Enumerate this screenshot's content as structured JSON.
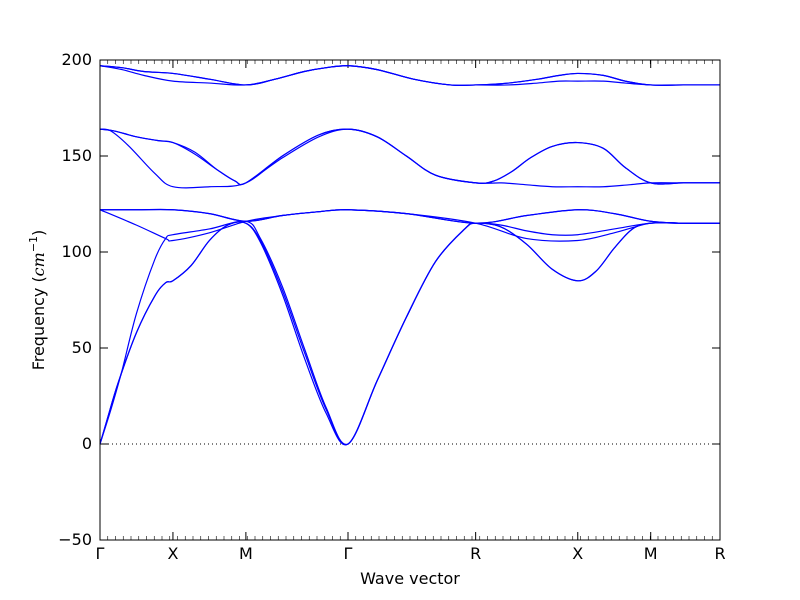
{
  "chart_data": {
    "type": "line",
    "title": "",
    "xlabel": "Wave vector",
    "ylabel_text": "Frequency (",
    "ylabel_unit_base": "cm",
    "ylabel_unit_exp": "−1",
    "ylabel_close": ")",
    "ylim": [
      -50,
      200
    ],
    "yticks": [
      -50,
      0,
      50,
      100,
      150,
      200
    ],
    "ytick_labels": [
      "−50",
      "0",
      "50",
      "100",
      "150",
      "200"
    ],
    "xlim": [
      0,
      8.5
    ],
    "high_symmetry_points": [
      {
        "label": "Γ",
        "x": 0
      },
      {
        "label": "X",
        "x": 1
      },
      {
        "label": "M",
        "x": 2
      },
      {
        "label": "Γ",
        "x": 3.4
      },
      {
        "label": "R",
        "x": 5.15
      },
      {
        "label": "X",
        "x": 6.55
      },
      {
        "label": "M",
        "x": 7.55
      },
      {
        "label": "R",
        "x": 8.5
      }
    ],
    "zero_line": true,
    "line_color": "#0000ff",
    "series": [
      {
        "x": [
          0,
          0.1,
          0.25,
          0.5,
          0.75,
          0.9,
          1,
          1.25,
          1.5,
          1.75,
          2,
          2.2,
          2.5,
          2.8,
          3.1,
          3.4,
          3.8,
          4.2,
          4.6,
          5.0,
          5.15,
          5.5,
          5.85,
          6.2,
          6.55,
          6.8,
          7.05,
          7.3,
          7.55,
          8.0,
          8.5
        ],
        "y": [
          0,
          13,
          32,
          58,
          77,
          84,
          85,
          93,
          106,
          114,
          115,
          105,
          78,
          45,
          16,
          0,
          33,
          66,
          95,
          112,
          115,
          113,
          104,
          91,
          85,
          90,
          102,
          112,
          115,
          115,
          115
        ]
      },
      {
        "x": [
          0,
          0.1,
          0.25,
          0.5,
          0.75,
          0.9,
          1,
          1.25,
          1.5,
          1.75,
          2,
          2.2,
          2.5,
          2.8,
          3.1,
          3.4,
          3.8,
          4.2,
          4.6,
          5.0,
          5.15,
          5.5,
          5.85,
          6.2,
          6.55,
          6.8,
          7.05,
          7.3,
          7.55,
          8.0,
          8.5
        ],
        "y": [
          0,
          13,
          32,
          58,
          77,
          84,
          85,
          93,
          106,
          114,
          115,
          106,
          80,
          48,
          18,
          0,
          33,
          66,
          95,
          112,
          115,
          113,
          104,
          91,
          85,
          90,
          102,
          112,
          115,
          115,
          115
        ]
      },
      {
        "x": [
          0,
          0.15,
          0.3,
          0.5,
          0.75,
          0.9,
          1,
          1.5,
          2,
          2.2,
          2.5,
          2.8,
          3.1,
          3.4,
          3.8,
          4.2,
          4.6,
          5.0,
          5.15,
          5.5,
          5.85,
          6.2,
          6.55,
          7.05,
          7.55,
          8.0,
          8.5
        ],
        "y": [
          0,
          18,
          38,
          68,
          96,
          107,
          109,
          112,
          116,
          107,
          82,
          50,
          19,
          0,
          33,
          66,
          95,
          112,
          115,
          114,
          111,
          109,
          109,
          112,
          115,
          115,
          115
        ]
      },
      {
        "x": [
          0,
          0.5,
          0.9,
          1,
          1.5,
          2,
          2.5,
          3.0,
          3.4,
          4.2,
          5.15,
          5.85,
          6.55,
          7.05,
          7.55,
          8.0,
          8.5
        ],
        "y": [
          122,
          114,
          107,
          106,
          110,
          116,
          119,
          121,
          122,
          120,
          115,
          107,
          106,
          110,
          115,
          115,
          115
        ]
      },
      {
        "x": [
          0,
          0.5,
          1,
          1.5,
          2,
          2.5,
          3.0,
          3.4,
          4.2,
          5.15,
          5.85,
          6.55,
          7.05,
          7.55,
          8.0,
          8.5
        ],
        "y": [
          122,
          122,
          122,
          120,
          116,
          119,
          121,
          122,
          120,
          115,
          119,
          122,
          120,
          116,
          115,
          115
        ]
      },
      {
        "x": [
          0,
          0.5,
          1,
          1.5,
          2,
          2.5,
          3.0,
          3.4,
          4.2,
          5.15,
          5.85,
          6.55,
          7.05,
          7.55,
          8.0,
          8.5
        ],
        "y": [
          122,
          122,
          122,
          120,
          116,
          119,
          121,
          122,
          120,
          115,
          119,
          122,
          120,
          116,
          115,
          115
        ]
      },
      {
        "x": [
          0,
          0.15,
          0.4,
          0.75,
          1,
          1.5,
          2,
          2.5,
          3.0,
          3.4,
          3.8,
          4.2,
          4.6,
          5.15,
          5.5,
          5.85,
          6.2,
          6.55,
          6.9,
          7.25,
          7.55,
          8.0,
          8.5
        ],
        "y": [
          164,
          163,
          155,
          141,
          134,
          134,
          136,
          150,
          161,
          164,
          160,
          150,
          140,
          136,
          136,
          135,
          134,
          134,
          134,
          135,
          136,
          136,
          136
        ]
      },
      {
        "x": [
          0,
          0.2,
          0.5,
          0.8,
          1,
          1.3,
          1.6,
          1.85,
          2,
          2.5,
          3.0,
          3.4,
          3.8,
          4.2,
          4.6,
          5.15,
          5.4,
          5.65,
          5.9,
          6.2,
          6.55,
          6.9,
          7.2,
          7.55,
          8.0,
          8.5
        ],
        "y": [
          164,
          163,
          160,
          158,
          157,
          152,
          143,
          137,
          136,
          150,
          161,
          164,
          160,
          150,
          140,
          136,
          137,
          142,
          149,
          155,
          157,
          154,
          144,
          136,
          136,
          136
        ]
      },
      {
        "x": [
          0,
          0.2,
          0.5,
          0.8,
          1,
          1.3,
          1.6,
          1.85,
          2,
          2.5,
          3.0,
          3.4,
          3.8,
          4.2,
          4.6,
          5.15,
          5.4,
          5.65,
          5.9,
          6.2,
          6.55,
          6.9,
          7.2,
          7.55,
          8.0,
          8.5
        ],
        "y": [
          164,
          163,
          160,
          158,
          157,
          151,
          143,
          137,
          136,
          149,
          160,
          164,
          160,
          150,
          140,
          136,
          137,
          142,
          149,
          155,
          157,
          154,
          144,
          136,
          136,
          136
        ]
      },
      {
        "x": [
          0,
          0.3,
          0.6,
          1,
          1.5,
          2,
          2.4,
          2.8,
          3.1,
          3.4,
          3.8,
          4.3,
          4.8,
          5.15,
          5.6,
          6.0,
          6.3,
          6.55,
          6.9,
          7.2,
          7.55,
          8.0,
          8.5
        ],
        "y": [
          197,
          195,
          192,
          189,
          188,
          187,
          190,
          194,
          196,
          197,
          195,
          190,
          187,
          187,
          187,
          188,
          189,
          189,
          189,
          188,
          187,
          187,
          187
        ]
      },
      {
        "x": [
          0,
          0.3,
          0.6,
          1,
          1.5,
          2,
          2.4,
          2.8,
          3.1,
          3.4,
          3.8,
          4.3,
          4.8,
          5.15,
          5.6,
          6.0,
          6.3,
          6.55,
          6.9,
          7.2,
          7.55,
          8.0,
          8.5
        ],
        "y": [
          197,
          196,
          194,
          193,
          190,
          187,
          190,
          194,
          196,
          197,
          195,
          190,
          187,
          187,
          188,
          190,
          192,
          193,
          192,
          189,
          187,
          187,
          187
        ]
      },
      {
        "x": [
          0,
          0.3,
          0.6,
          1,
          1.5,
          2,
          2.4,
          2.8,
          3.1,
          3.4,
          3.8,
          4.3,
          4.8,
          5.15,
          5.6,
          6.0,
          6.3,
          6.55,
          6.9,
          7.2,
          7.55,
          8.0,
          8.5
        ],
        "y": [
          197,
          196,
          194,
          193,
          190,
          187,
          190,
          194,
          196,
          197,
          195,
          190,
          187,
          187,
          188,
          190,
          192,
          193,
          192,
          189,
          187,
          187,
          187
        ]
      }
    ]
  }
}
